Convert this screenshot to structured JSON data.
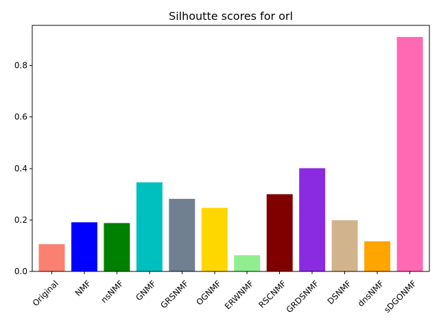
{
  "chart_data": {
    "type": "bar",
    "title": "Silhoutte scores for orl",
    "xlabel": "",
    "ylabel": "",
    "categories": [
      "Original",
      "NMF",
      "nsNMF",
      "GNMF",
      "GRSNMF",
      "OGNMF",
      "ERWNMF",
      "RSCNMF",
      "GRDSNMF",
      "DSNMF",
      "dnsNMF",
      "sDGONMF"
    ],
    "values": [
      0.106,
      0.191,
      0.188,
      0.346,
      0.282,
      0.247,
      0.063,
      0.3,
      0.401,
      0.199,
      0.117,
      0.911
    ],
    "colors": [
      "#fa8072",
      "#0000ff",
      "#008000",
      "#00bfbf",
      "#708090",
      "#ffd700",
      "#90ee90",
      "#800000",
      "#8a2be2",
      "#d2b48c",
      "#ffa500",
      "#ff69b4"
    ],
    "ylim": [
      0,
      0.956
    ],
    "yticks": [
      0.0,
      0.2,
      0.4,
      0.6,
      0.8
    ],
    "ytick_labels": [
      "0.0",
      "0.2",
      "0.4",
      "0.6",
      "0.8"
    ],
    "xtick_rotation_deg": 45,
    "grid": false,
    "legend": "none"
  }
}
